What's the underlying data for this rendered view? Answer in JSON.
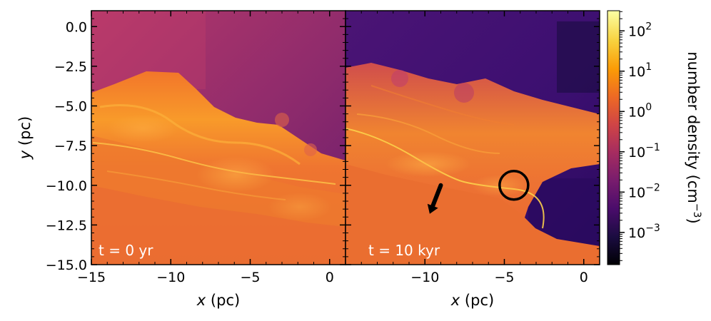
{
  "chart_data": [
    {
      "type": "heatmap",
      "annotation": "t = 0 yr",
      "xlabel_var": "x",
      "xlabel_unit": "(pc)",
      "ylabel_var": "y",
      "ylabel_unit": "(pc)",
      "xlim": [
        -15,
        1
      ],
      "ylim": [
        -15,
        1
      ],
      "xticks": [
        -15,
        -10,
        -5,
        0
      ],
      "xtick_labels": [
        "−15",
        "−10",
        "−5",
        "0"
      ],
      "yticks": [
        0,
        -2.5,
        -5,
        -7.5,
        -10,
        -12.5,
        -15
      ],
      "ytick_labels": [
        "0.0",
        "−2.5",
        "−5.0",
        "−7.5",
        "−10.0",
        "−12.5",
        "−15.0"
      ]
    },
    {
      "type": "heatmap",
      "annotation": "t = 10 kyr",
      "xlabel_var": "x",
      "xlabel_unit": "(pc)",
      "xlim": [
        -15,
        1
      ],
      "ylim": [
        -15,
        1
      ],
      "xticks": [
        -10,
        -5,
        0
      ],
      "xtick_labels": [
        "−10",
        "−5",
        "0"
      ],
      "markers": {
        "circle": {
          "x": -4.4,
          "y": -10.0
        },
        "arrow": {
          "from": [
            -9.0,
            -10.0
          ],
          "to": [
            -9.7,
            -11.8
          ]
        }
      }
    }
  ],
  "colorbar": {
    "label": "number density (cm",
    "label_sup": "−3",
    "label_end": ")",
    "colormap": "inferno",
    "scale": "log",
    "range_log10": [
      -3.8,
      2.5
    ],
    "ticks": [
      {
        "base": "10",
        "exp": "2",
        "value": 2
      },
      {
        "base": "10",
        "exp": "1",
        "value": 1
      },
      {
        "base": "10",
        "exp": "0",
        "value": 0
      },
      {
        "base": "10",
        "exp": "−1",
        "value": -1
      },
      {
        "base": "10",
        "exp": "−2",
        "value": -2
      },
      {
        "base": "10",
        "exp": "−3",
        "value": -3
      }
    ],
    "colors": [
      "#000004",
      "#1b0c41",
      "#4a0c6b",
      "#781c6d",
      "#a52c60",
      "#cf4446",
      "#ed6925",
      "#fb9b06",
      "#f7d13d",
      "#fcffa4"
    ]
  }
}
